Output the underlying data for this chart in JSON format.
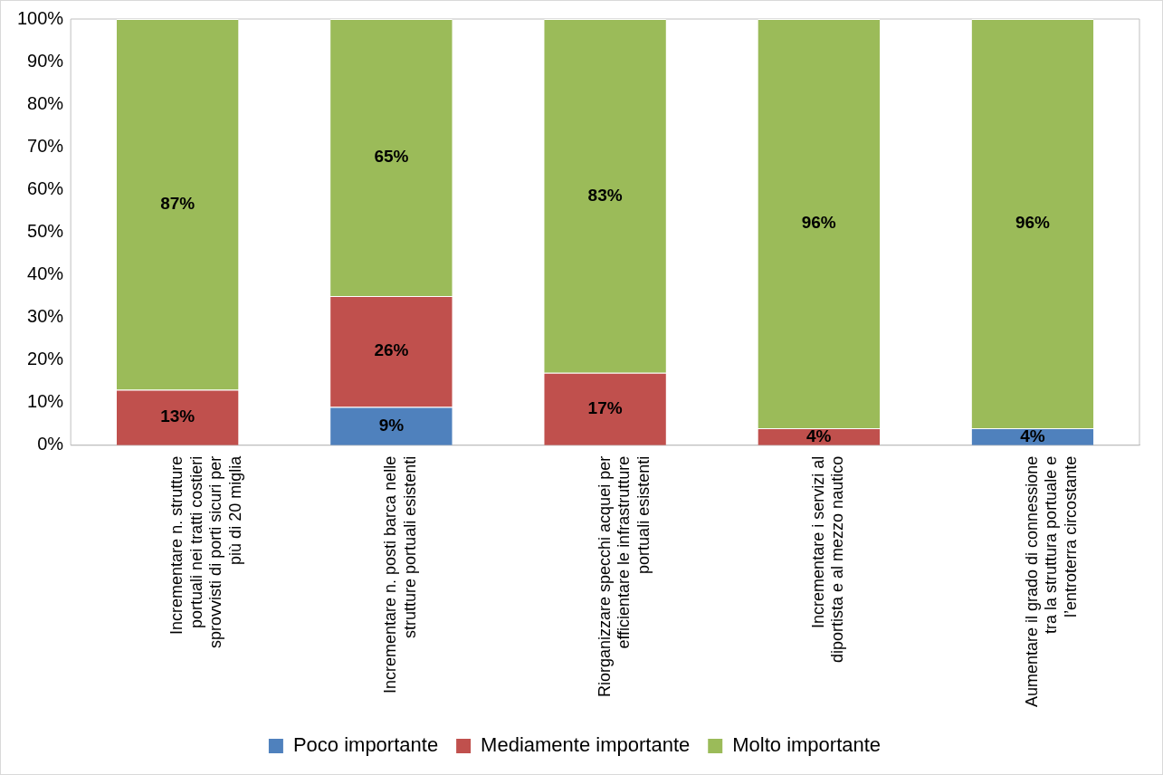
{
  "chart_data": {
    "type": "bar",
    "stacked": true,
    "categories": [
      "Incrementare n. strutture portuali nei tratti costieri sprovvisti di porti sicuri per più di 20 miglia",
      "Incrementare n. posti barca nelle strutture portuali esistenti",
      "Riorganizzare specchi acquei per efficientare le infrastrutture portuali esistenti",
      "Incrementare i servizi al diportista e al mezzo nautico",
      "Aumentare il grado di connessione tra la struttura portuale e l’entroterra circostante"
    ],
    "series": [
      {
        "name": "Poco importante",
        "color": "#4f81bd",
        "values": [
          0,
          9,
          0,
          0,
          4
        ],
        "value_labels": [
          null,
          "9%",
          null,
          null,
          "4%"
        ]
      },
      {
        "name": "Mediamente importante",
        "color": "#c0504d",
        "values": [
          13,
          26,
          17,
          4,
          0
        ],
        "value_labels": [
          "13%",
          "26%",
          "17%",
          "4%",
          null
        ]
      },
      {
        "name": "Molto importante",
        "color": "#9bbb59",
        "values": [
          87,
          65,
          83,
          96,
          96
        ],
        "value_labels": [
          "87%",
          "65%",
          "83%",
          "96%",
          "96%"
        ]
      }
    ],
    "ylim": [
      0,
      100
    ],
    "yticks": [
      {
        "value": 0,
        "label": "0%"
      },
      {
        "value": 10,
        "label": "10%"
      },
      {
        "value": 20,
        "label": "20%"
      },
      {
        "value": 30,
        "label": "30%"
      },
      {
        "value": 40,
        "label": "40%"
      },
      {
        "value": 50,
        "label": "50%"
      },
      {
        "value": 60,
        "label": "60%"
      },
      {
        "value": 70,
        "label": "70%"
      },
      {
        "value": 80,
        "label": "80%"
      },
      {
        "value": 90,
        "label": "90%"
      },
      {
        "value": 100,
        "label": "100%"
      }
    ],
    "grid": false,
    "legend": "bottom"
  }
}
